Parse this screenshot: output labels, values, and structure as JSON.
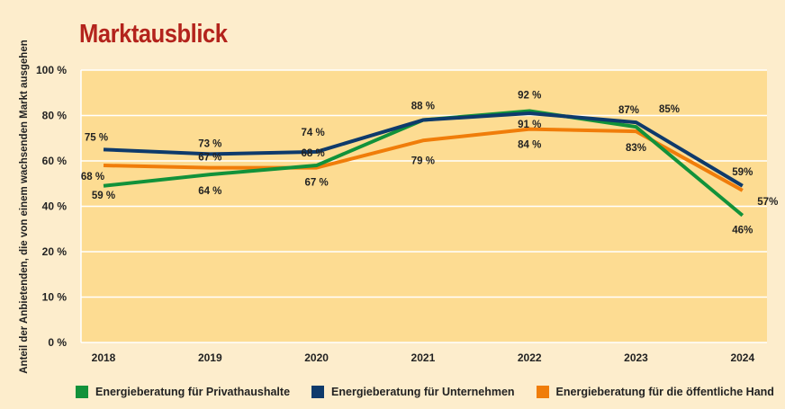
{
  "chart_data": {
    "type": "line",
    "title": "Marktausblick",
    "ylabel": "Anteil der Anbietenden, die von einem wachsenden Markt ausgehen",
    "xlabel": "",
    "categories": [
      "2018",
      "2019",
      "2020",
      "2021",
      "2022",
      "2023",
      "2024"
    ],
    "y_ticks": [
      0,
      10,
      20,
      40,
      60,
      80,
      100
    ],
    "y_tick_labels": [
      "0 %",
      "10 %",
      "20 %",
      "40 %",
      "60 %",
      "80 %",
      "100 %"
    ],
    "grid": true,
    "legend_position": "bottom",
    "series": [
      {
        "name": "Energieberatung für Privathaushalte",
        "color": "#12923a",
        "values": [
          59,
          64,
          68,
          88,
          92,
          85,
          46
        ],
        "labels": [
          "59 %",
          "64 %",
          "68 %",
          "",
          "92 %",
          "85%",
          "46%"
        ]
      },
      {
        "name": "Energieberatung für Unternehmen",
        "color": "#0e3a6b",
        "values": [
          75,
          73,
          74,
          88,
          91,
          87,
          59
        ],
        "labels": [
          "75 %",
          "73 %",
          "74 %",
          "88 %",
          "91 %",
          "87%",
          "59%"
        ]
      },
      {
        "name": "Energieberatung für die öffentliche Hand",
        "color": "#f07d0a",
        "values": [
          68,
          67,
          67,
          79,
          84,
          83,
          57
        ],
        "labels": [
          "68 %",
          "67 %",
          "67 %",
          "79 %",
          "84 %",
          "83%",
          "57%"
        ]
      }
    ],
    "colors": {
      "plot_background": "#fddc92",
      "page_background": "#fdedcc",
      "title": "#b3231c"
    }
  }
}
